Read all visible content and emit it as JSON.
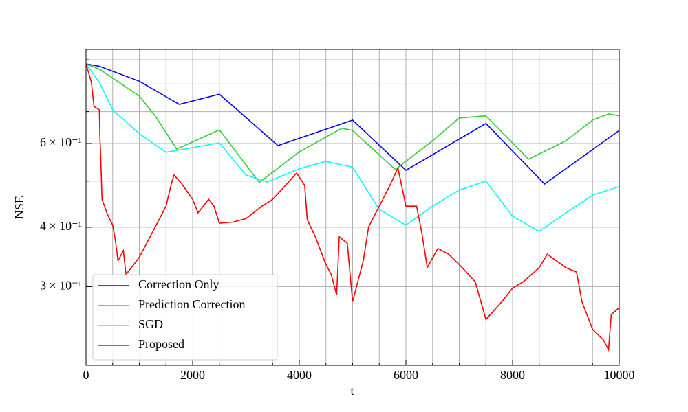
{
  "chart_data": {
    "type": "line",
    "xlabel": "t",
    "ylabel": "NSE",
    "xlim": [
      0,
      10000
    ],
    "xticks": [
      0,
      2000,
      4000,
      6000,
      8000,
      10000
    ],
    "xticks_minor": [
      500,
      1000,
      1500,
      2500,
      3000,
      3500,
      4500,
      5000,
      5500,
      6500,
      7000,
      7500,
      8500,
      9000,
      9500
    ],
    "ylim": [
      0.205,
      0.946
    ],
    "yscale": "log",
    "yticks": [
      {
        "value": 0.3,
        "label": "3 × 10⁻¹"
      },
      {
        "value": 0.4,
        "label": "4 × 10⁻¹"
      },
      {
        "value": 0.6,
        "label": "6 × 10⁻¹"
      }
    ],
    "yticks_minor": [
      0.5,
      0.7,
      0.8,
      0.9
    ],
    "grid": true,
    "legend": "lower left",
    "series": [
      {
        "name": "Correction Only",
        "color": "#0000ff",
        "x": [
          0,
          250,
          1000,
          1750,
          2500,
          3600,
          5000,
          6000,
          7500,
          8600,
          10000
        ],
        "values": [
          0.882,
          0.872,
          0.811,
          0.725,
          0.762,
          0.594,
          0.672,
          0.527,
          0.661,
          0.493,
          0.639
        ]
      },
      {
        "name": "Prediction Correction",
        "color": "#33cc33",
        "x": [
          0,
          250,
          1000,
          1300,
          1700,
          2500,
          3250,
          4000,
          4800,
          5000,
          5800,
          6500,
          7000,
          7500,
          8300,
          9000,
          9500,
          9800,
          10000
        ],
        "values": [
          0.882,
          0.86,
          0.755,
          0.685,
          0.584,
          0.641,
          0.497,
          0.576,
          0.646,
          0.639,
          0.529,
          0.608,
          0.679,
          0.686,
          0.556,
          0.608,
          0.672,
          0.692,
          0.686
        ]
      },
      {
        "name": "SGD",
        "color": "#00ffff",
        "x": [
          0,
          250,
          500,
          1000,
          1500,
          2000,
          2500,
          3000,
          3400,
          4000,
          4500,
          5000,
          5500,
          6000,
          6500,
          7000,
          7500,
          8000,
          8500,
          9000,
          9500,
          10000
        ],
        "values": [
          0.882,
          0.807,
          0.706,
          0.629,
          0.575,
          0.588,
          0.602,
          0.515,
          0.498,
          0.531,
          0.55,
          0.535,
          0.436,
          0.404,
          0.443,
          0.479,
          0.5,
          0.422,
          0.392,
          0.429,
          0.467,
          0.487
        ]
      },
      {
        "name": "Proposed",
        "color": "#ff0000",
        "x": [
          0,
          100,
          150,
          250,
          260,
          270,
          300,
          400,
          500,
          550,
          600,
          700,
          750,
          1000,
          1300,
          1500,
          1600,
          1650,
          1800,
          2000,
          2100,
          2300,
          2400,
          2500,
          2750,
          3000,
          3300,
          3500,
          3800,
          3950,
          4100,
          4150,
          4300,
          4500,
          4600,
          4700,
          4750,
          4900,
          5000,
          5200,
          5300,
          5500,
          5700,
          5850,
          6000,
          6200,
          6300,
          6400,
          6600,
          6800,
          7000,
          7300,
          7500,
          7800,
          8000,
          8200,
          8500,
          8650,
          9000,
          9200,
          9300,
          9500,
          9700,
          9800,
          9850,
          10000
        ],
        "values": [
          0.882,
          0.807,
          0.718,
          0.706,
          0.618,
          0.588,
          0.458,
          0.426,
          0.404,
          0.376,
          0.34,
          0.357,
          0.318,
          0.346,
          0.401,
          0.443,
          0.493,
          0.515,
          0.493,
          0.458,
          0.429,
          0.458,
          0.443,
          0.408,
          0.41,
          0.417,
          0.443,
          0.458,
          0.498,
          0.52,
          0.49,
          0.415,
          0.382,
          0.334,
          0.318,
          0.288,
          0.382,
          0.37,
          0.279,
          0.34,
          0.401,
          0.443,
          0.49,
          0.533,
          0.443,
          0.443,
          0.388,
          0.329,
          0.361,
          0.351,
          0.334,
          0.307,
          0.256,
          0.279,
          0.298,
          0.307,
          0.329,
          0.351,
          0.329,
          0.322,
          0.279,
          0.244,
          0.232,
          0.221,
          0.262,
          0.271
        ]
      }
    ]
  }
}
